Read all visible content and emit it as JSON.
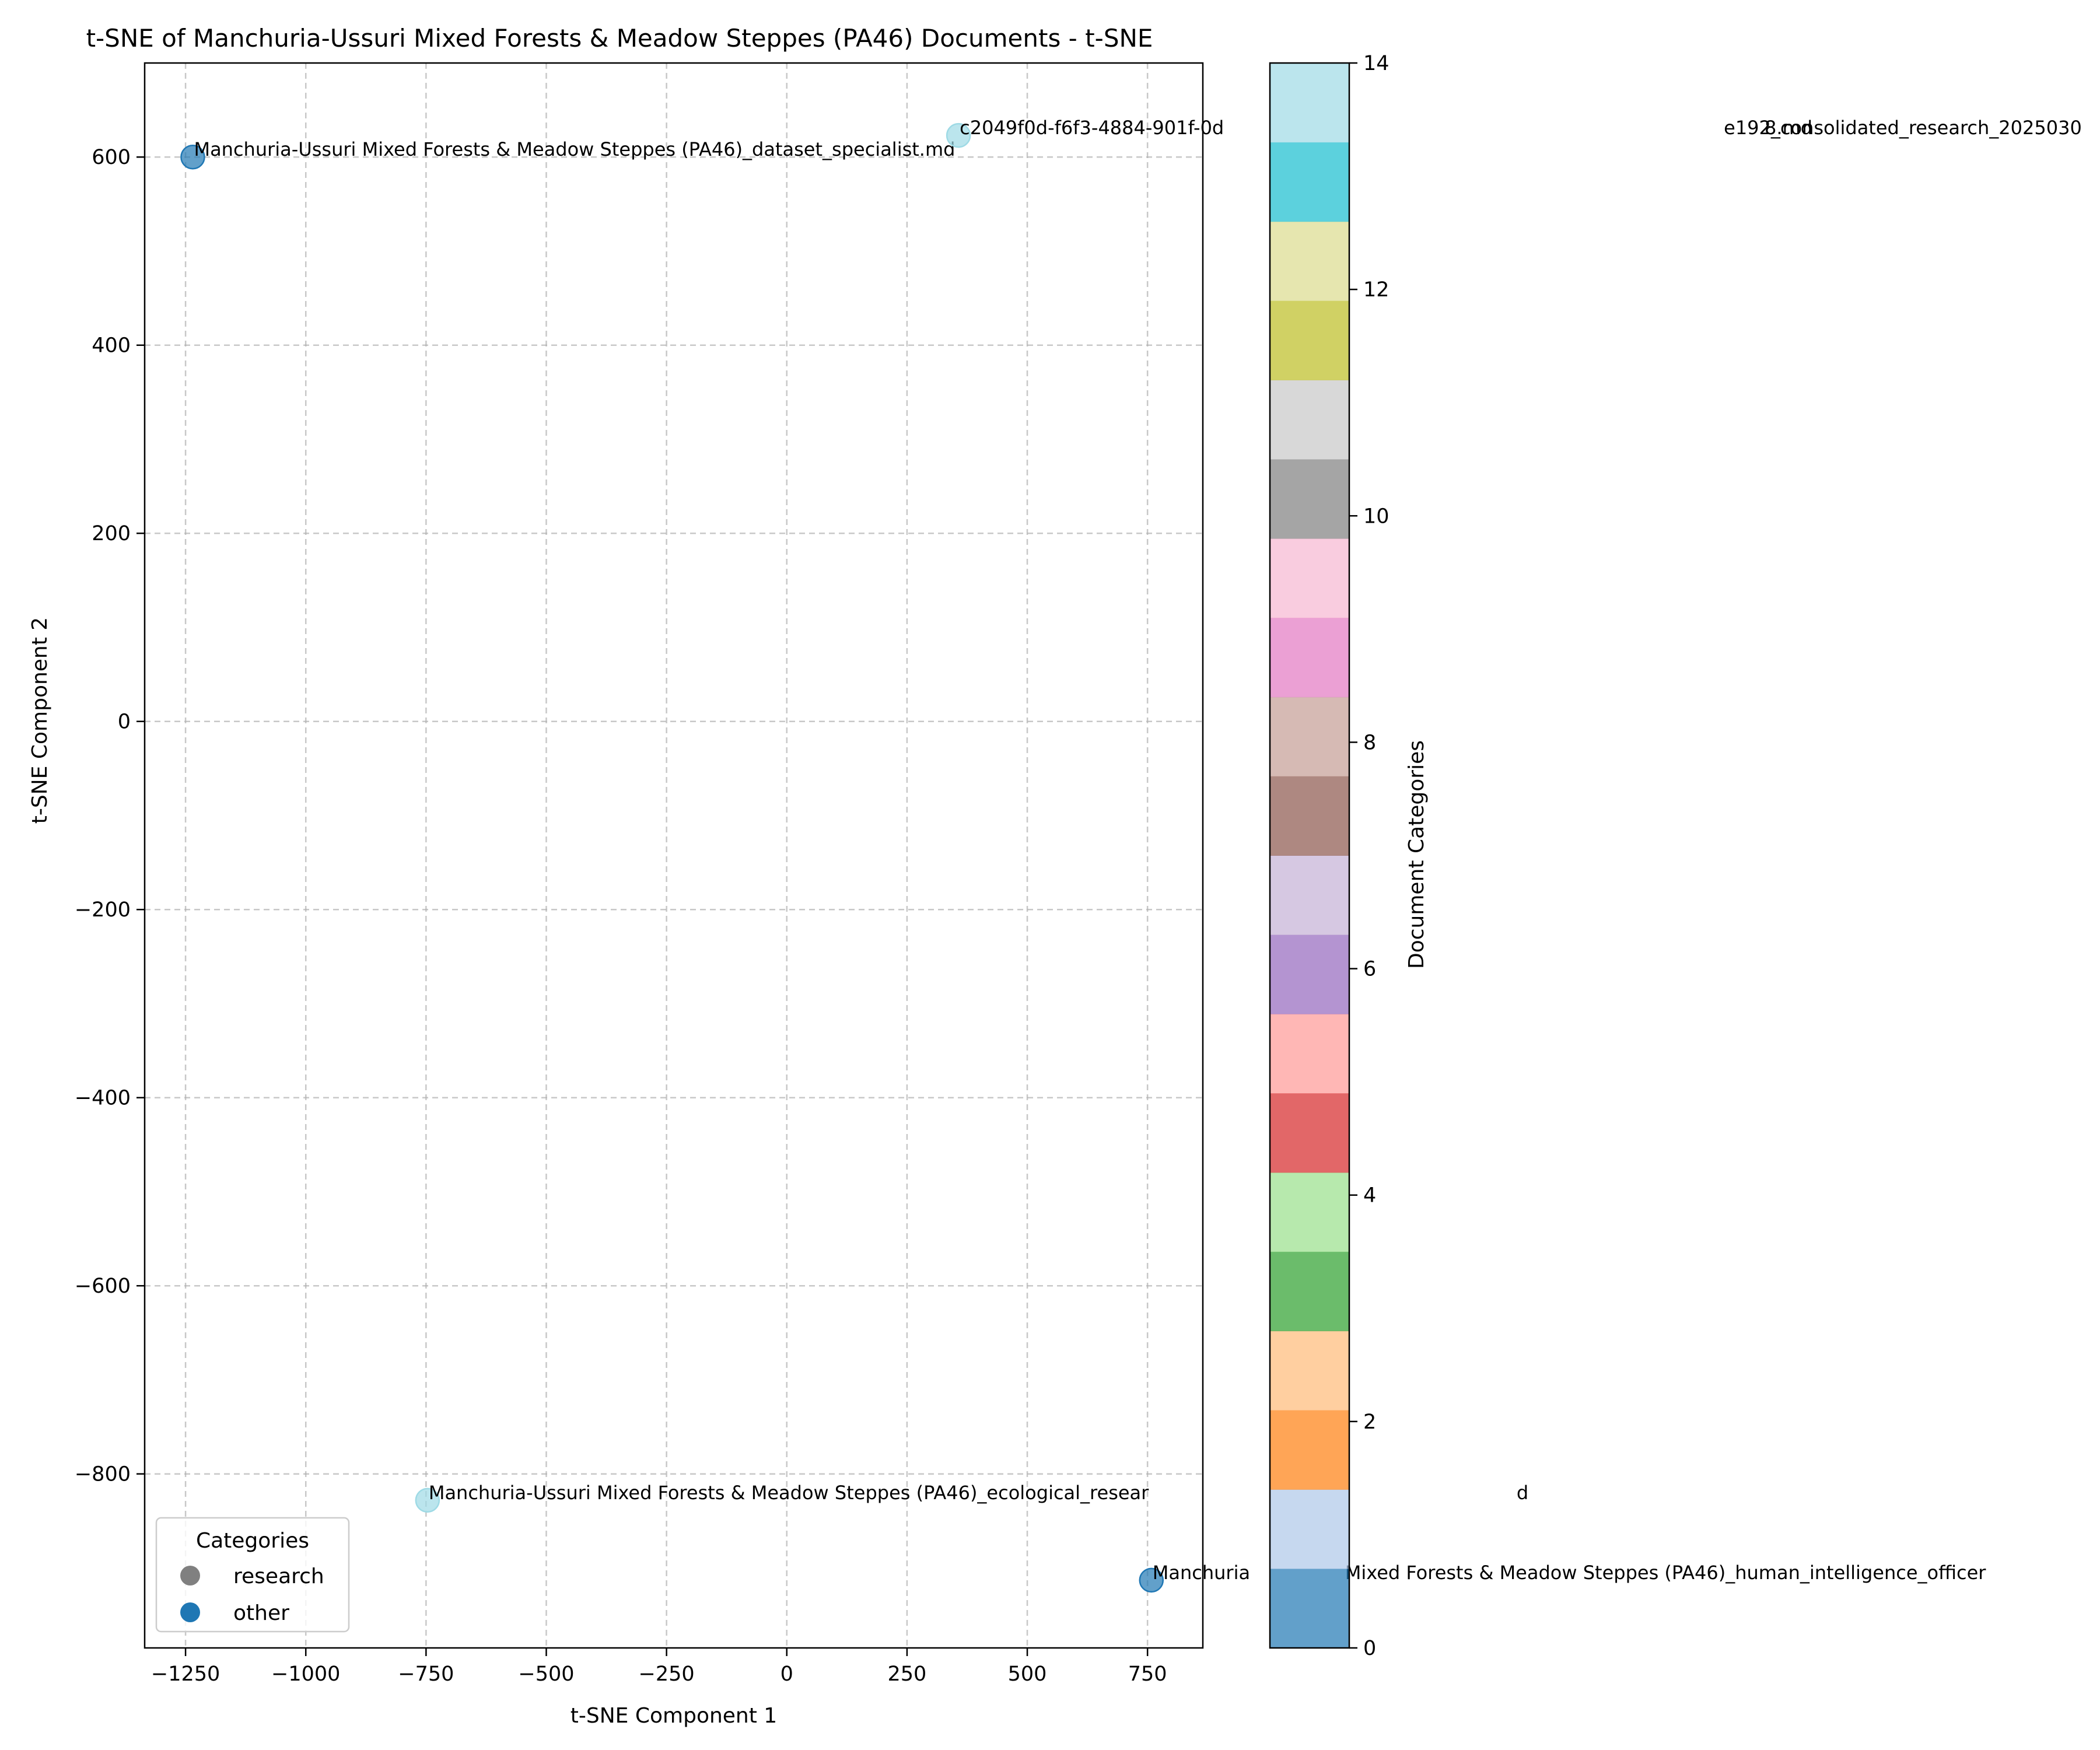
{
  "chart_data": {
    "type": "scatter",
    "title": "t-SNE of Manchuria-Ussuri Mixed Forests & Meadow Steppes (PA46) Documents - t-SNE",
    "xlabel": "t-SNE Component 1",
    "ylabel": "t-SNE Component 2",
    "xlim": [
      -1335,
      865
    ],
    "ylim": [
      -985,
      700
    ],
    "xticks": [
      -1250,
      -1000,
      -750,
      -500,
      -250,
      0,
      250,
      500,
      750
    ],
    "yticks": [
      -800,
      -600,
      -400,
      -200,
      0,
      200,
      400,
      600
    ],
    "xtick_labels": [
      "−1250",
      "−1000",
      "−750",
      "−500",
      "−250",
      "0",
      "250",
      "500",
      "750"
    ],
    "ytick_labels": [
      "−800",
      "−600",
      "−400",
      "−200",
      "0",
      "200",
      "400",
      "600"
    ],
    "grid": true,
    "points": [
      {
        "x": -1235,
        "y": 600,
        "category": 0,
        "color": "#1f77b4",
        "label": "Manchuria-Ussuri Mixed Forests & Meadow Steppes (PA46)_dataset_specialist.md"
      },
      {
        "x": 357,
        "y": 623,
        "category": 14,
        "color": "#9edae5",
        "label": "c2049f0d-f6f3-4884-901f-0d",
        "label_tail": "e192_consolidated_research_2025030",
        "label_end": "8.md"
      },
      {
        "x": -747,
        "y": -828,
        "category": 14,
        "color": "#9edae5",
        "label": "Manchuria-Ussuri Mixed Forests & Meadow Steppes (PA46)_ecological_resear",
        "label_tail": "d"
      },
      {
        "x": 758,
        "y": -913,
        "category": 0,
        "color": "#1f77b4",
        "label": "Manchuria",
        "label_tail": "Mixed Forests & Meadow Steppes (PA46)_human_intelligence_officer"
      }
    ],
    "legend": {
      "title": "Categories",
      "placement": "lower-left",
      "entries": [
        {
          "label": "research",
          "color": "#808080"
        },
        {
          "label": "other",
          "color": "#1f77b4"
        }
      ]
    },
    "colorbar": {
      "label": "Document Categories",
      "min": 0,
      "max": 14,
      "ticks": [
        0,
        2,
        4,
        6,
        8,
        10,
        12,
        14
      ],
      "tick_labels": [
        "0",
        "2",
        "4",
        "6",
        "8",
        "10",
        "12",
        "14"
      ],
      "colors": [
        "#1f77b4",
        "#aec7e8",
        "#ff7f0e",
        "#ffbb78",
        "#2ca02c",
        "#98df8a",
        "#d62728",
        "#ff9896",
        "#9467bd",
        "#c5b0d5",
        "#8c564b",
        "#c49c94",
        "#e377c2",
        "#f7b6d2",
        "#7f7f7f",
        "#c7c7c7",
        "#bcbd22",
        "#dbdb8d",
        "#17becf",
        "#9edae5"
      ]
    }
  }
}
